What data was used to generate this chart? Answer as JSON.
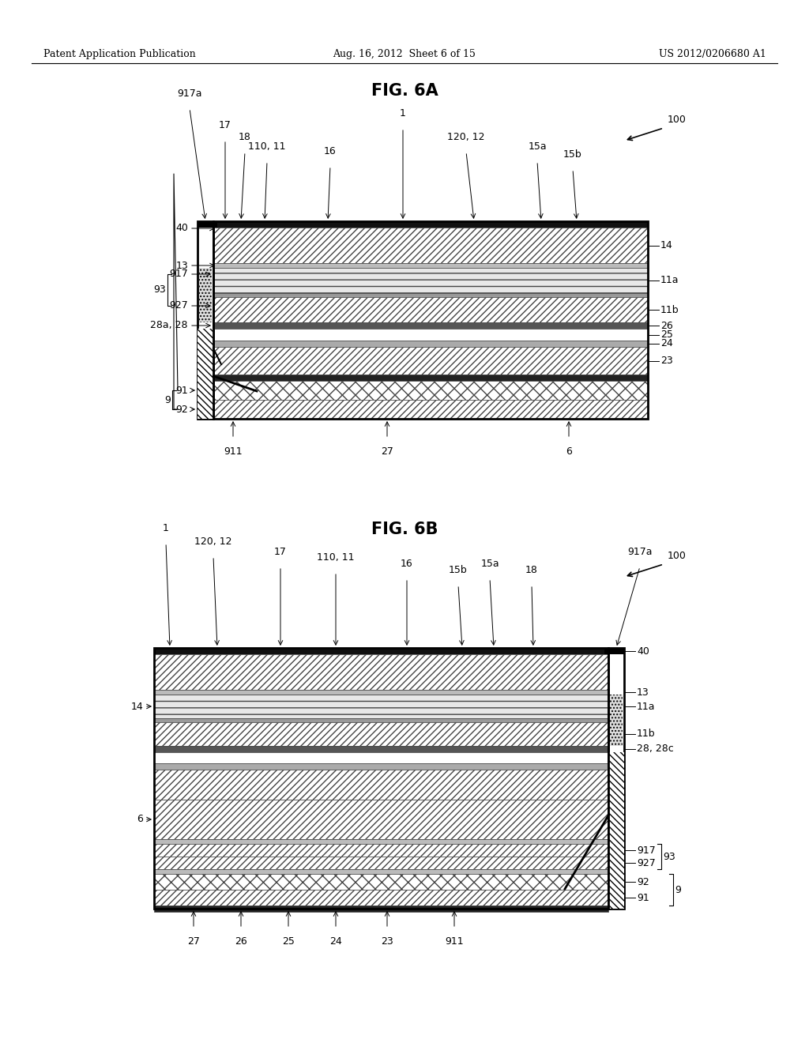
{
  "page_header_left": "Patent Application Publication",
  "page_header_middle": "Aug. 16, 2012  Sheet 6 of 15",
  "page_header_right": "US 2012/0206680 A1",
  "fig6a_title": "FIG. 6A",
  "fig6b_title": "FIG. 6B",
  "background_color": "#ffffff"
}
